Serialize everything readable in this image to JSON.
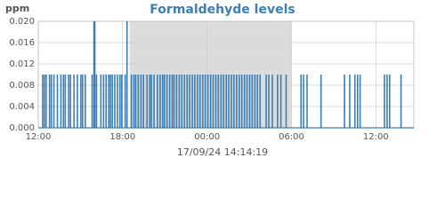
{
  "chart_data": {
    "type": "spike",
    "title": "Formaldehyde levels",
    "y_label": "ppm",
    "footer": "17/09/24 14:14:19",
    "color": "#3b7fb6",
    "grid": true,
    "shaded_range": [
      6.5,
      18.0
    ],
    "xlim": [
      0,
      26.7
    ],
    "ylim": [
      0,
      0.02
    ],
    "xticks": [
      {
        "value": 0,
        "label": "12:00"
      },
      {
        "value": 6,
        "label": "18:00"
      },
      {
        "value": 12,
        "label": "00:00"
      },
      {
        "value": 18,
        "label": "06:00"
      },
      {
        "value": 24,
        "label": "12:00"
      }
    ],
    "yticks": [
      {
        "value": 0,
        "label": "0.000"
      },
      {
        "value": 0.004,
        "label": "0.004"
      },
      {
        "value": 0.008,
        "label": "0.008"
      },
      {
        "value": 0.012,
        "label": "0.012"
      },
      {
        "value": 0.016,
        "label": "0.016"
      },
      {
        "value": 0.02,
        "label": "0.020"
      }
    ],
    "x": [
      0.31,
      0.43,
      0.56,
      0.8,
      0.93,
      1.11,
      1.36,
      1.61,
      1.79,
      1.92,
      2.16,
      2.29,
      2.54,
      2.78,
      3.03,
      3.15,
      3.34,
      3.83,
      3.96,
      4.02,
      4.14,
      4.45,
      4.64,
      4.82,
      5.01,
      5.13,
      5.26,
      5.44,
      5.63,
      5.81,
      5.94,
      6.18,
      6.31,
      6.62,
      6.8,
      6.93,
      7.11,
      7.3,
      7.48,
      7.73,
      7.92,
      8.04,
      8.23,
      8.47,
      8.66,
      8.84,
      8.97,
      9.15,
      9.34,
      9.52,
      9.65,
      9.83,
      10.02,
      10.2,
      10.39,
      10.58,
      10.76,
      10.95,
      11.13,
      11.32,
      11.5,
      11.69,
      11.87,
      12.06,
      12.25,
      12.43,
      12.62,
      12.8,
      12.99,
      13.17,
      13.36,
      13.54,
      13.73,
      13.91,
      14.1,
      14.29,
      14.47,
      14.66,
      14.84,
      15.03,
      15.21,
      15.4,
      15.58,
      15.77,
      16.2,
      16.39,
      16.64,
      17.01,
      17.25,
      17.62,
      18.68,
      18.86,
      19.11,
      20.1,
      21.77,
      22.14,
      22.51,
      22.7,
      22.88,
      24.61,
      24.8,
      24.98,
      25.79
    ],
    "values": [
      0.01,
      0.01,
      0.01,
      0.01,
      0.01,
      0.01,
      0.01,
      0.01,
      0.01,
      0.01,
      0.01,
      0.01,
      0.01,
      0.01,
      0.01,
      0.01,
      0.01,
      0.01,
      0.02,
      0.02,
      0.01,
      0.01,
      0.01,
      0.01,
      0.01,
      0.01,
      0.01,
      0.01,
      0.01,
      0.01,
      0.01,
      0.01,
      0.02,
      0.01,
      0.01,
      0.01,
      0.01,
      0.01,
      0.01,
      0.01,
      0.01,
      0.01,
      0.01,
      0.01,
      0.01,
      0.01,
      0.01,
      0.01,
      0.01,
      0.01,
      0.01,
      0.01,
      0.01,
      0.01,
      0.01,
      0.01,
      0.01,
      0.01,
      0.01,
      0.01,
      0.01,
      0.01,
      0.01,
      0.01,
      0.01,
      0.01,
      0.01,
      0.01,
      0.01,
      0.01,
      0.01,
      0.01,
      0.01,
      0.01,
      0.01,
      0.01,
      0.01,
      0.01,
      0.01,
      0.01,
      0.01,
      0.01,
      0.01,
      0.01,
      0.01,
      0.01,
      0.01,
      0.01,
      0.01,
      0.01,
      0.01,
      0.01,
      0.01,
      0.01,
      0.01,
      0.01,
      0.01,
      0.01,
      0.01,
      0.01,
      0.01,
      0.01,
      0.01
    ]
  }
}
